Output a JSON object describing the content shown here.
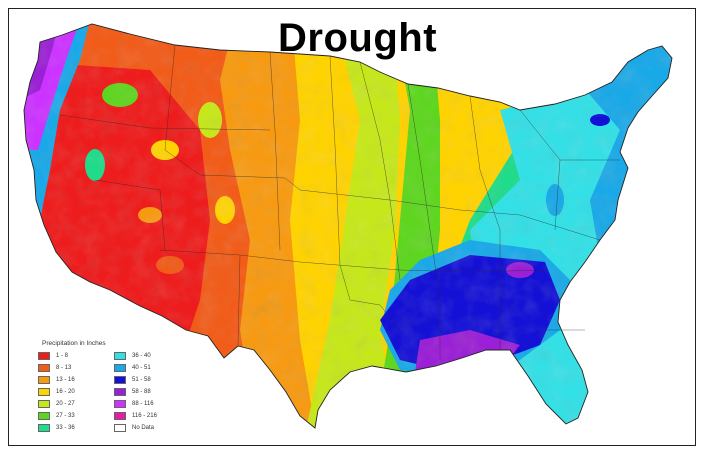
{
  "title": "Drought",
  "legend": {
    "title": "Precipitation in Inches",
    "items": [
      {
        "label": "1 - 8",
        "color": "#ee1d1d"
      },
      {
        "label": "8 - 13",
        "color": "#f25c19"
      },
      {
        "label": "13 - 16",
        "color": "#f79a12"
      },
      {
        "label": "16 - 20",
        "color": "#ffd300"
      },
      {
        "label": "20 - 27",
        "color": "#c6e81a"
      },
      {
        "label": "27 - 33",
        "color": "#5ed61f"
      },
      {
        "label": "33 - 36",
        "color": "#1fdc8a"
      },
      {
        "label": "36 - 40",
        "color": "#33e0e6"
      },
      {
        "label": "40 - 51",
        "color": "#1aa9e8"
      },
      {
        "label": "51 - 58",
        "color": "#1410d6"
      },
      {
        "label": "58 - 88",
        "color": "#9b1fd6"
      },
      {
        "label": "88 - 116",
        "color": "#cc33ff"
      },
      {
        "label": "116 - 216",
        "color": "#e61aa6"
      },
      {
        "label": "No Data",
        "color": "#ffffff"
      }
    ]
  }
}
